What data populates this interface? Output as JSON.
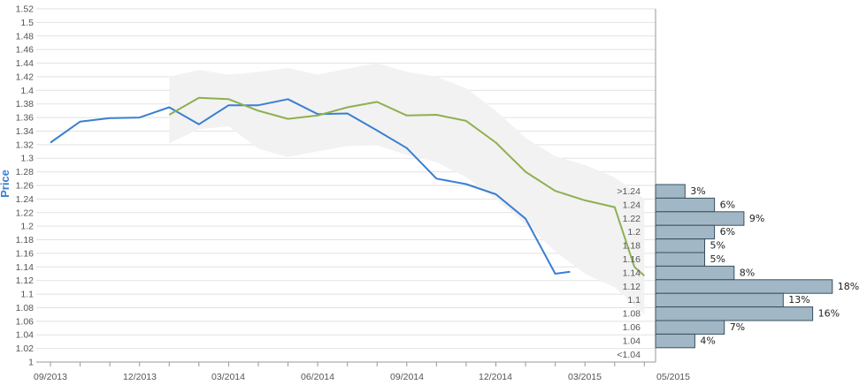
{
  "chart_data": {
    "type": "line",
    "ylabel": "Price",
    "ylim": [
      1.0,
      1.52
    ],
    "y_ticks": [
      "1",
      "1.02",
      "1.04",
      "1.06",
      "1.08",
      "1.1",
      "1.12",
      "1.14",
      "1.16",
      "1.18",
      "1.2",
      "1.22",
      "1.24",
      "1.26",
      "1.28",
      "1.3",
      "1.32",
      "1.34",
      "1.36",
      "1.38",
      "1.4",
      "1.42",
      "1.44",
      "1.46",
      "1.48",
      "1.5",
      "1.52"
    ],
    "x_tick_labels": [
      "09/2013",
      "12/2013",
      "03/2014",
      "06/2014",
      "09/2014",
      "12/2014",
      "03/2015",
      "05/2015"
    ],
    "colors": {
      "actual": "#3a7fd1",
      "forecast": "#8db050",
      "band": "#f2f2f2",
      "bar_fill": "#a2b7c5",
      "bar_stroke": "#394f5f",
      "grid": "#e2e2e2",
      "axis": "#999999",
      "label": "#3a7fd1"
    },
    "series": [
      {
        "key": "actual",
        "x": [
          "2013-09-01",
          "2013-10-01",
          "2013-11-01",
          "2013-12-01",
          "2014-01-01",
          "2014-02-01",
          "2014-03-01",
          "2014-04-01",
          "2014-05-01",
          "2014-06-01",
          "2014-07-01",
          "2014-08-01",
          "2014-09-01",
          "2014-10-01",
          "2014-11-01",
          "2014-12-01",
          "2015-01-01",
          "2015-02-01",
          "2015-02-15"
        ],
        "y": [
          1.323,
          1.354,
          1.359,
          1.36,
          1.375,
          1.35,
          1.378,
          1.378,
          1.387,
          1.365,
          1.366,
          1.341,
          1.315,
          1.27,
          1.262,
          1.247,
          1.211,
          1.13,
          1.133
        ]
      },
      {
        "key": "forecast",
        "x": [
          "2014-01-01",
          "2014-02-01",
          "2014-03-01",
          "2014-04-01",
          "2014-05-01",
          "2014-06-01",
          "2014-07-01",
          "2014-08-01",
          "2014-09-01",
          "2014-10-01",
          "2014-11-01",
          "2014-12-01",
          "2015-01-01",
          "2015-02-01",
          "2015-03-01",
          "2015-04-01",
          "2015-04-21",
          "2015-05-01"
        ],
        "y": [
          1.364,
          1.389,
          1.387,
          1.37,
          1.358,
          1.363,
          1.375,
          1.383,
          1.363,
          1.364,
          1.355,
          1.323,
          1.28,
          1.252,
          1.238,
          1.228,
          1.14,
          1.127
        ]
      }
    ],
    "band": {
      "x": [
        "2014-01-01",
        "2014-02-01",
        "2014-03-01",
        "2014-04-01",
        "2014-05-01",
        "2014-06-01",
        "2014-07-01",
        "2014-08-01",
        "2014-09-01",
        "2014-10-01",
        "2014-11-01",
        "2014-12-01",
        "2015-01-01",
        "2015-02-01",
        "2015-03-01",
        "2015-04-01",
        "2015-05-01"
      ],
      "upper": [
        1.42,
        1.43,
        1.423,
        1.427,
        1.433,
        1.423,
        1.432,
        1.44,
        1.427,
        1.42,
        1.403,
        1.37,
        1.33,
        1.303,
        1.29,
        1.272,
        1.24
      ],
      "lower": [
        1.322,
        1.343,
        1.347,
        1.314,
        1.302,
        1.31,
        1.318,
        1.319,
        1.305,
        1.294,
        1.272,
        1.24,
        1.203,
        1.163,
        1.13,
        1.11,
        1.07
      ]
    },
    "distribution": [
      {
        "label": ">1.24",
        "pct": 3,
        "text": "3%"
      },
      {
        "label": "1.24",
        "pct": 6,
        "text": "6%"
      },
      {
        "label": "1.22",
        "pct": 9,
        "text": "9%"
      },
      {
        "label": "1.2",
        "pct": 6,
        "text": "6%"
      },
      {
        "label": "1.18",
        "pct": 5,
        "text": "5%"
      },
      {
        "label": "1.16",
        "pct": 5,
        "text": "5%"
      },
      {
        "label": "1.14",
        "pct": 8,
        "text": "8%"
      },
      {
        "label": "1.12",
        "pct": 18,
        "text": "18%"
      },
      {
        "label": "1.1",
        "pct": 13,
        "text": "13%"
      },
      {
        "label": "1.08",
        "pct": 16,
        "text": "16%"
      },
      {
        "label": "1.06",
        "pct": 7,
        "text": "7%"
      },
      {
        "label": "1.04",
        "pct": 4,
        "text": "4%"
      },
      {
        "label": "<1.04",
        "pct": 0,
        "text": ""
      }
    ]
  }
}
